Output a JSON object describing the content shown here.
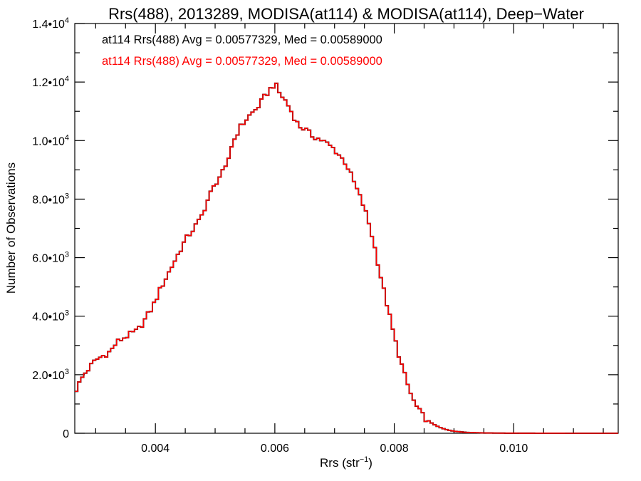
{
  "chart_data": {
    "type": "histogram-step",
    "title": "Rrs(488), 2013289, MODISA(at114) & MODISA(at114), Deep−Water",
    "xlabel": "Rrs (str",
    "xlabel_sup": "−1",
    "xlabel_end": ")",
    "ylabel": "Number of Observations",
    "xlim": [
      0.00265,
      0.01175
    ],
    "ylim": [
      0,
      14000
    ],
    "x_ticks": [
      {
        "value": 0.004,
        "label": "0.004"
      },
      {
        "value": 0.006,
        "label": "0.006"
      },
      {
        "value": 0.008,
        "label": "0.008"
      },
      {
        "value": 0.01,
        "label": "0.010"
      }
    ],
    "y_ticks": [
      {
        "value": 0,
        "mant": "0",
        "exp": ""
      },
      {
        "value": 2000,
        "mant": "2.0•10",
        "exp": "3"
      },
      {
        "value": 4000,
        "mant": "4.0•10",
        "exp": "3"
      },
      {
        "value": 6000,
        "mant": "6.0•10",
        "exp": "3"
      },
      {
        "value": 8000,
        "mant": "8.0•10",
        "exp": "3"
      },
      {
        "value": 10000,
        "mant": "1.0•10",
        "exp": "4"
      },
      {
        "value": 12000,
        "mant": "1.2•10",
        "exp": "4"
      },
      {
        "value": 14000,
        "mant": "1.4•10",
        "exp": "4"
      }
    ],
    "annotations": [
      {
        "text": "at114 Rrs(488) Avg = 0.00577329, Med = 0.00589000",
        "color": "#000000"
      },
      {
        "text": "at114 Rrs(488) Avg = 0.00577329, Med = 0.00589000",
        "color": "#ff0000"
      }
    ],
    "bin_width": 5e-05,
    "series": [
      {
        "name": "at114",
        "color": "#000000",
        "x": [
          0.00265,
          0.0028,
          0.003,
          0.00325,
          0.00335,
          0.0035,
          0.0037,
          0.0038,
          0.00395,
          0.0041,
          0.0043,
          0.0045,
          0.00475,
          0.0049,
          0.00505,
          0.0052,
          0.00525,
          0.0054,
          0.00555,
          0.0057,
          0.0059,
          0.00598,
          0.006,
          0.00605,
          0.0062,
          0.0063,
          0.0064,
          0.0065,
          0.0066,
          0.0068,
          0.007,
          0.0072,
          0.0074,
          0.0075,
          0.0076,
          0.0077,
          0.0078,
          0.0079,
          0.008,
          0.0081,
          0.0082,
          0.0083,
          0.0084,
          0.0085,
          0.0086,
          0.0087,
          0.0088,
          0.0089,
          0.009,
          0.0092,
          0.0095,
          0.0098,
          0.0102,
          0.0106,
          0.011,
          0.01175
        ],
        "y": [
          1400,
          2000,
          2500,
          2800,
          3100,
          3300,
          3500,
          3800,
          4300,
          5000,
          5800,
          6600,
          7300,
          8100,
          8700,
          9100,
          9700,
          10400,
          10800,
          11100,
          11700,
          11900,
          12000,
          11700,
          11300,
          10900,
          10500,
          10400,
          10200,
          10000,
          9700,
          9200,
          8200,
          7700,
          7000,
          6100,
          5100,
          4200,
          3300,
          2500,
          1800,
          1200,
          800,
          550,
          380,
          260,
          170,
          110,
          70,
          30,
          10,
          5,
          2,
          1,
          0,
          0
        ]
      },
      {
        "name": "at114",
        "color": "#ff0000",
        "x": [
          0.00265,
          0.0028,
          0.003,
          0.00325,
          0.00335,
          0.0035,
          0.0037,
          0.0038,
          0.00395,
          0.0041,
          0.0043,
          0.0045,
          0.00475,
          0.0049,
          0.00505,
          0.0052,
          0.00525,
          0.0054,
          0.00555,
          0.0057,
          0.0059,
          0.00598,
          0.006,
          0.00605,
          0.0062,
          0.0063,
          0.0064,
          0.0065,
          0.0066,
          0.0068,
          0.007,
          0.0072,
          0.0074,
          0.0075,
          0.0076,
          0.0077,
          0.0078,
          0.0079,
          0.008,
          0.0081,
          0.0082,
          0.0083,
          0.0084,
          0.0085,
          0.0086,
          0.0087,
          0.0088,
          0.0089,
          0.009,
          0.0092,
          0.0095,
          0.0098,
          0.0102,
          0.0106,
          0.011,
          0.01175
        ],
        "y": [
          1400,
          2000,
          2500,
          2800,
          3100,
          3300,
          3500,
          3800,
          4300,
          5000,
          5800,
          6600,
          7300,
          8100,
          8700,
          9100,
          9700,
          10400,
          10800,
          11100,
          11700,
          11900,
          12000,
          11700,
          11300,
          10900,
          10500,
          10400,
          10200,
          10000,
          9700,
          9200,
          8200,
          7700,
          7000,
          6100,
          5100,
          4200,
          3300,
          2500,
          1800,
          1200,
          800,
          550,
          380,
          260,
          170,
          110,
          70,
          30,
          10,
          5,
          2,
          1,
          0,
          0
        ]
      }
    ]
  }
}
